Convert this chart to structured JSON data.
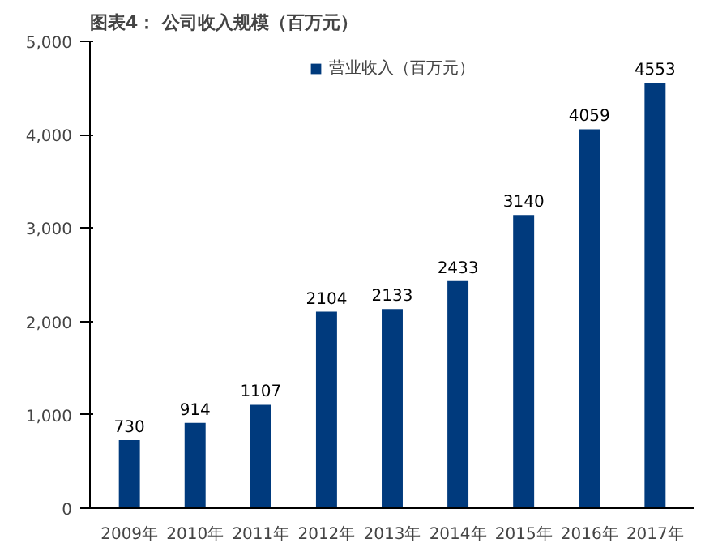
{
  "chart_data": {
    "type": "bar",
    "title": "图表4：  公司收入规模（百万元）",
    "categories": [
      "2009年",
      "2010年",
      "2011年",
      "2012年",
      "2013年",
      "2014年",
      "2015年",
      "2016年",
      "2017年"
    ],
    "series": [
      {
        "name": "营业收入（百万元）",
        "color": "#003a7d",
        "values": [
          730,
          914,
          1107,
          2104,
          2133,
          2433,
          3140,
          4059,
          4553
        ]
      }
    ],
    "ylim": [
      0,
      5000
    ],
    "yticks": [
      0,
      {
        "value": 1000,
        "label": "1,000"
      },
      {
        "value": 2000,
        "label": "2,000"
      },
      {
        "value": 3000,
        "label": "3,000"
      },
      {
        "value": 4000,
        "label": "4,000"
      },
      {
        "value": 5000,
        "label": "5,000"
      }
    ],
    "data_labels": true,
    "grid": false,
    "legend": "top"
  }
}
